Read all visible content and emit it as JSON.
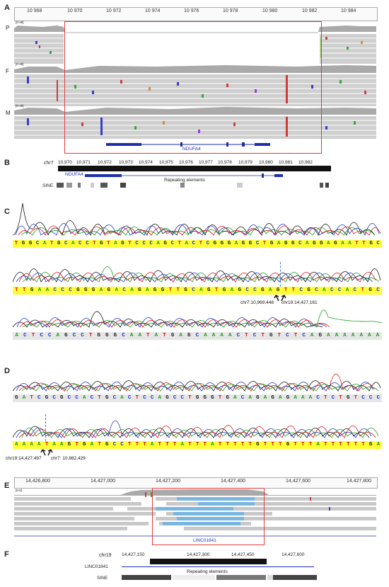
{
  "panels": {
    "a": "A",
    "b": "B",
    "c": "C",
    "d": "D",
    "e": "E",
    "f": "F"
  },
  "panelA": {
    "ticks": [
      "10 968",
      "10 970",
      "10 972",
      "10 974",
      "10 976",
      "10 978",
      "10 980",
      "10 982",
      "10 984"
    ],
    "tracks": [
      "P",
      "F",
      "M"
    ],
    "scale_labels": [
      "[0-48]",
      "[0-48]",
      "[0-48]"
    ],
    "gene": "NDUFA4"
  },
  "panelB": {
    "chrom": "chr7",
    "ticks": [
      "10,970",
      "10,971",
      "10,972",
      "10,973",
      "10,974",
      "10,975",
      "10,976",
      "10,977",
      "10,978",
      "10,979",
      "10,980",
      "10,981",
      "10,982"
    ],
    "gene": "NDUFA4",
    "repeat_label": "Repeating elements",
    "sine_label": "SINE"
  },
  "panelC": {
    "row1": "TGGCATGCACCTGTAGTCCCAGCTACTCGGGAGGCTGAGGCAGGAGAATTGC",
    "row2": "TTGAACCCGGGAGACAGAGGTTGCAGTGAGCCGAGTTCGCACCACTGC",
    "row3": "ACTCCAGCCTGGGCAATATGAGCAAAACTCTGTCTCAGAAAAAAA",
    "bp_left": "chr7:10,969,448",
    "bp_right": "chr19:14,427,161"
  },
  "panelD": {
    "row1": "GATCGCGCCACTGCACTCCAGCCTGGGTGACAGAGAGAAACTCTGTCCC",
    "row2": "AAAATAAGTGATGCCTTTATTTATTTATTTTTGTTTGTTTATTTTTTGA",
    "bp_left": "chr19:14,427,497",
    "bp_right": "chr7: 10,982,429"
  },
  "panelE": {
    "ticks": [
      "14,426,800",
      "14,427,000",
      "14,427,200",
      "14,427,400",
      "14,427,600",
      "14,427,800"
    ],
    "scale_label": "[0-8]",
    "gene": "LINC01841"
  },
  "panelF": {
    "chrom": "chr19",
    "ticks": [
      "14,427,150",
      "14,427,300",
      "14,427,450",
      "14,427,600"
    ],
    "gene": "LINC01841",
    "repeat_label": "Repeating elements",
    "sine_label": "SINE"
  },
  "colors": {
    "highlight_box": "#e23b3b",
    "gene": "#1c2fa8",
    "coverage": "#a9a9a9",
    "read": "#c8c8c8",
    "softclip": "#7ab6e0",
    "seq_bar": "#ffff33"
  }
}
